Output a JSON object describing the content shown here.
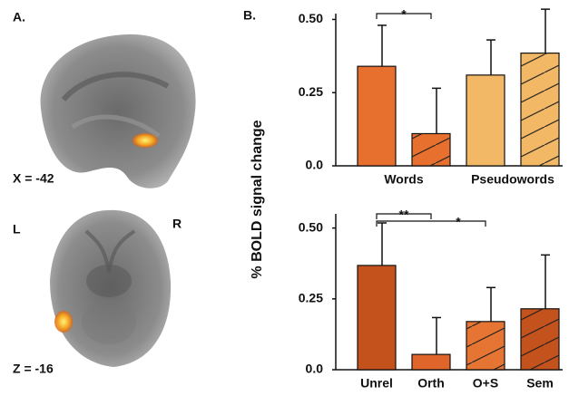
{
  "panel_a": {
    "label": "A.",
    "sagittal": {
      "coord": "X = -42"
    },
    "axial": {
      "coord": "Z = -16",
      "left": "L",
      "right": "R"
    }
  },
  "panel_b_label": "B.",
  "y_label": "% BOLD signal change",
  "chart_data": [
    {
      "type": "bar",
      "categories": [
        null,
        null,
        null,
        null
      ],
      "groups": [
        {
          "label": "Words",
          "span": [
            0,
            1
          ]
        },
        {
          "label": "Pseudowords",
          "span": [
            2,
            3
          ]
        }
      ],
      "values": [
        0.34,
        0.11,
        0.31,
        0.385
      ],
      "errors": [
        0.14,
        0.155,
        0.12,
        0.15
      ],
      "colors": [
        "#e8702e",
        "#e8702e",
        "#f2b866",
        "#f2b866"
      ],
      "hatched": [
        false,
        true,
        false,
        true
      ],
      "ylim": [
        0,
        0.52
      ],
      "yticks": [
        {
          "value": 0,
          "label": "0.0"
        },
        0.25,
        {
          "value": 0.5,
          "label": "0.50"
        }
      ],
      "significance": [
        {
          "from": 0,
          "to": 1,
          "label": "*"
        }
      ]
    },
    {
      "type": "bar",
      "categories": [
        "Unrel",
        "Orth",
        "O+S",
        "Sem"
      ],
      "values": [
        0.368,
        0.054,
        0.17,
        0.215
      ],
      "errors": [
        0.15,
        0.13,
        0.12,
        0.19
      ],
      "colors": [
        "#c4521c",
        "#e0652a",
        "#e67534",
        "#c4521c"
      ],
      "hatched": [
        false,
        false,
        true,
        true
      ],
      "ylim": [
        0,
        0.55
      ],
      "yticks": [
        {
          "value": 0,
          "label": "0.0"
        },
        0.25,
        {
          "value": 0.5,
          "label": "0.50"
        }
      ],
      "significance": [
        {
          "from": 0,
          "to": 1,
          "label": "**"
        },
        {
          "from": 0,
          "to": 2,
          "label": "*"
        }
      ]
    }
  ]
}
